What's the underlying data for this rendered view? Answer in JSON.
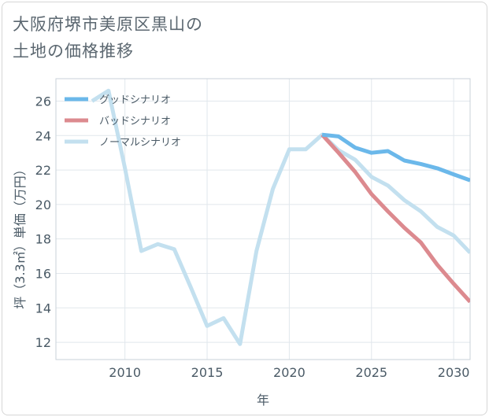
{
  "page": {
    "title_line1": "大阪府堺市美原区黒山の",
    "title_line2": "土地の価格推移"
  },
  "chart_data": {
    "type": "line",
    "xlabel": "年",
    "ylabel": "坪（3.3㎡）単価（万円）",
    "xlim": [
      2005.8,
      2031
    ],
    "ylim": [
      11,
      27.3
    ],
    "xticks": [
      2010,
      2015,
      2020,
      2025,
      2030
    ],
    "yticks": [
      12,
      14,
      16,
      18,
      20,
      22,
      24,
      26
    ],
    "grid": true,
    "legend_position": "top-left",
    "series": [
      {
        "name": "グッドシナリオ",
        "color": "#6bb8ea",
        "x": [
          2022,
          2023,
          2024,
          2025,
          2026,
          2027,
          2028,
          2029,
          2030,
          2031
        ],
        "y": [
          24.05,
          23.95,
          23.3,
          23.0,
          23.1,
          22.55,
          22.35,
          22.1,
          21.75,
          21.4
        ]
      },
      {
        "name": "バッドシナリオ",
        "color": "#dc8a8f",
        "x": [
          2022,
          2023,
          2024,
          2025,
          2026,
          2027,
          2028,
          2029,
          2030,
          2031
        ],
        "y": [
          24.05,
          23.0,
          21.9,
          20.6,
          19.6,
          18.65,
          17.8,
          16.5,
          15.4,
          14.35
        ]
      },
      {
        "name": "ノーマルシナリオ",
        "color": "#c3e0ef",
        "x": [
          2008,
          2009,
          2010,
          2011,
          2012,
          2013,
          2014,
          2015,
          2016,
          2017,
          2018,
          2019,
          2020,
          2021,
          2022,
          2023,
          2024,
          2025,
          2026,
          2027,
          2028,
          2029,
          2030,
          2031
        ],
        "y": [
          26.0,
          26.6,
          22.1,
          17.3,
          17.7,
          17.4,
          15.2,
          12.95,
          13.4,
          11.9,
          17.3,
          20.9,
          23.2,
          23.2,
          24.05,
          23.15,
          22.6,
          21.6,
          21.1,
          20.25,
          19.6,
          18.7,
          18.2,
          17.2
        ]
      }
    ]
  }
}
